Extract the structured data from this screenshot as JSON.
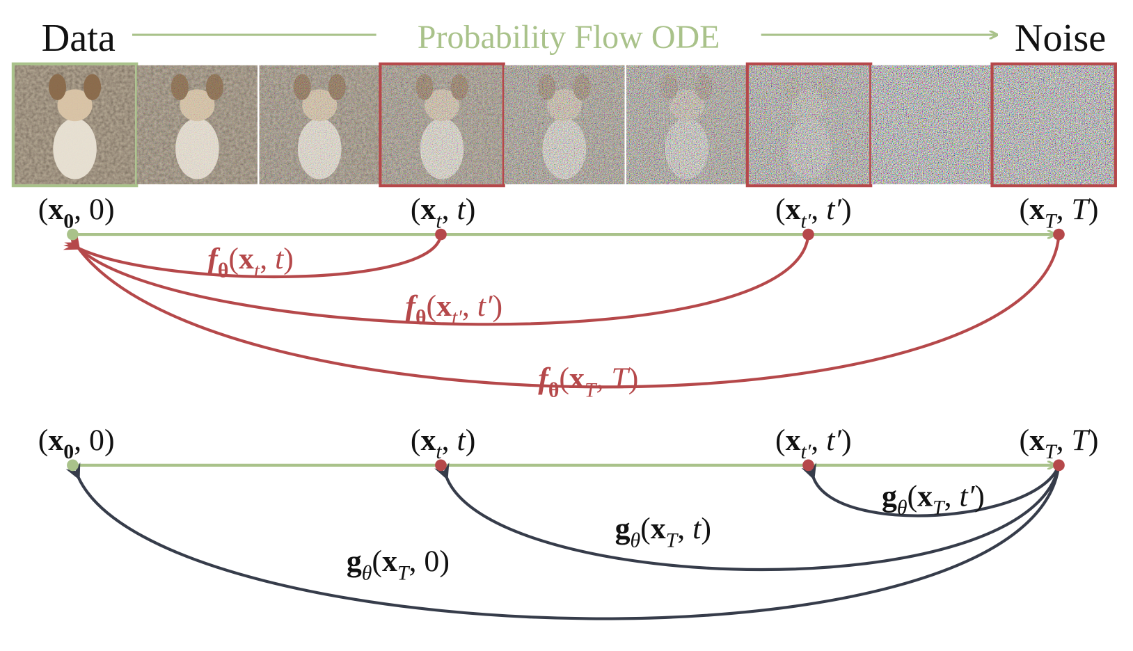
{
  "header": {
    "start": "Data",
    "process": "Probability Flow ODE",
    "end": "Noise"
  },
  "top": {
    "nodes": [
      [
        [
          "(",
          "r"
        ],
        [
          "x",
          "b"
        ],
        [
          "0",
          "bs"
        ],
        [
          ", 0)",
          "r"
        ]
      ],
      [
        [
          "(",
          "r"
        ],
        [
          "x",
          "b"
        ],
        [
          "t",
          "s"
        ],
        [
          ", ",
          "r"
        ],
        [
          "t",
          "i"
        ],
        [
          ")",
          "r"
        ]
      ],
      [
        [
          "(",
          "r"
        ],
        [
          "x",
          "b"
        ],
        [
          "t′",
          "s"
        ],
        [
          ", ",
          "r"
        ],
        [
          "t′",
          "i"
        ],
        [
          ")",
          "r"
        ]
      ],
      [
        [
          "(",
          "r"
        ],
        [
          "x",
          "b"
        ],
        [
          "T",
          "s"
        ],
        [
          ", ",
          "r"
        ],
        [
          "T",
          "i"
        ],
        [
          ")",
          "r"
        ]
      ]
    ],
    "mappings": [
      [
        [
          "f",
          "bi"
        ],
        [
          "θ",
          "bs"
        ],
        [
          "(",
          "r"
        ],
        [
          "x",
          "b"
        ],
        [
          "t",
          "s"
        ],
        [
          ", ",
          "r"
        ],
        [
          "t",
          "i"
        ],
        [
          ")",
          "r"
        ]
      ],
      [
        [
          "f",
          "bi"
        ],
        [
          "θ",
          "bs"
        ],
        [
          "(",
          "r"
        ],
        [
          "x",
          "b"
        ],
        [
          "t′",
          "s"
        ],
        [
          ", ",
          "r"
        ],
        [
          "t′",
          "i"
        ],
        [
          ")",
          "r"
        ]
      ],
      [
        [
          "f",
          "bi"
        ],
        [
          "θ",
          "bs"
        ],
        [
          "(",
          "r"
        ],
        [
          "x",
          "b"
        ],
        [
          "T",
          "s"
        ],
        [
          ", ",
          "r"
        ],
        [
          "T",
          "i"
        ],
        [
          ")",
          "r"
        ]
      ]
    ]
  },
  "bottom": {
    "nodes": [
      [
        [
          "(",
          "r"
        ],
        [
          "x",
          "b"
        ],
        [
          "0",
          "bs"
        ],
        [
          ", 0)",
          "r"
        ]
      ],
      [
        [
          "(",
          "r"
        ],
        [
          "x",
          "b"
        ],
        [
          "t",
          "s"
        ],
        [
          ", ",
          "r"
        ],
        [
          "t",
          "i"
        ],
        [
          ")",
          "r"
        ]
      ],
      [
        [
          "(",
          "r"
        ],
        [
          "x",
          "b"
        ],
        [
          "t′",
          "s"
        ],
        [
          ", ",
          "r"
        ],
        [
          "t′",
          "i"
        ],
        [
          ")",
          "r"
        ]
      ],
      [
        [
          "(",
          "r"
        ],
        [
          "x",
          "b"
        ],
        [
          "T",
          "s"
        ],
        [
          ", ",
          "r"
        ],
        [
          "T",
          "i"
        ],
        [
          ")",
          "r"
        ]
      ]
    ],
    "mappings": [
      [
        [
          "g",
          "b"
        ],
        [
          "θ",
          "s"
        ],
        [
          "(",
          "r"
        ],
        [
          "x",
          "b"
        ],
        [
          "T",
          "s"
        ],
        [
          ", ",
          "r"
        ],
        [
          "t′",
          "i"
        ],
        [
          ")",
          "r"
        ]
      ],
      [
        [
          "g",
          "b"
        ],
        [
          "θ",
          "s"
        ],
        [
          "(",
          "r"
        ],
        [
          "x",
          "b"
        ],
        [
          "T",
          "s"
        ],
        [
          ", ",
          "r"
        ],
        [
          "t",
          "i"
        ],
        [
          ")",
          "r"
        ]
      ],
      [
        [
          "g",
          "b"
        ],
        [
          "θ",
          "s"
        ],
        [
          "(",
          "r"
        ],
        [
          "x",
          "b"
        ],
        [
          "T",
          "s"
        ],
        [
          ", 0)",
          "r"
        ]
      ]
    ]
  }
}
